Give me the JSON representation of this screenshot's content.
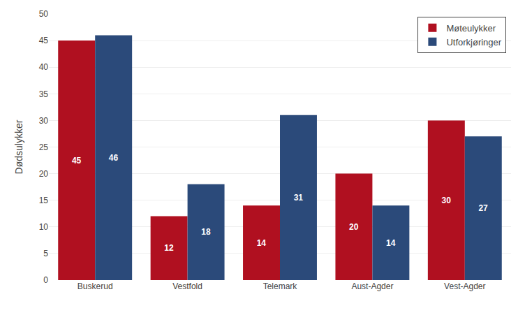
{
  "chart_data": {
    "type": "bar",
    "categories": [
      "Buskerud",
      "Vestfold",
      "Telemark",
      "Aust-Agder",
      "Vest-Agder"
    ],
    "series": [
      {
        "name": "Møteulykker",
        "color": "#b01020",
        "values": [
          45,
          12,
          14,
          20,
          30
        ]
      },
      {
        "name": "Utforkjøringer",
        "color": "#2b4a7a",
        "values": [
          46,
          18,
          31,
          14,
          27
        ]
      }
    ],
    "ylabel": "Dødsulykker",
    "ylim": [
      0,
      50
    ],
    "yticks": [
      0,
      5,
      10,
      15,
      20,
      25,
      30,
      35,
      40,
      45,
      50
    ],
    "grid": true,
    "legend": "upper right",
    "data_labels": true
  }
}
